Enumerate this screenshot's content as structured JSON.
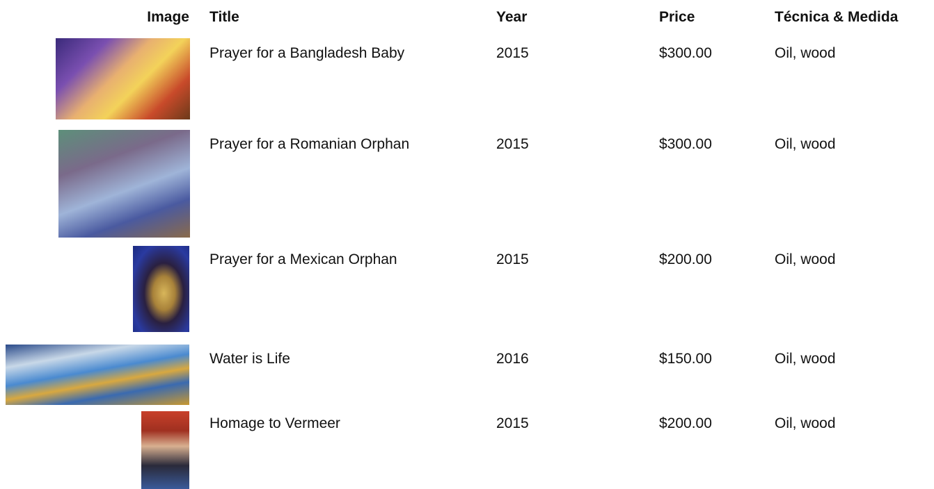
{
  "table": {
    "headers": [
      "Image",
      "Title",
      "Year",
      "Price",
      "Técnica & Medida"
    ],
    "rows": [
      [
        "Prayer for a Bangladesh Baby",
        "2015",
        "$300.00",
        "Oil, wood"
      ],
      [
        "Prayer for a Romanian Orphan",
        "2015",
        "$300.00",
        "Oil, wood"
      ],
      [
        "Prayer for a Mexican Orphan",
        "2015",
        "$200.00",
        "Oil, wood"
      ],
      [
        "Water is Life",
        "2016",
        "$150.00",
        "Oil, wood"
      ],
      [
        "Homage to Vermeer",
        "2015",
        "$200.00",
        "Oil, wood"
      ]
    ]
  }
}
